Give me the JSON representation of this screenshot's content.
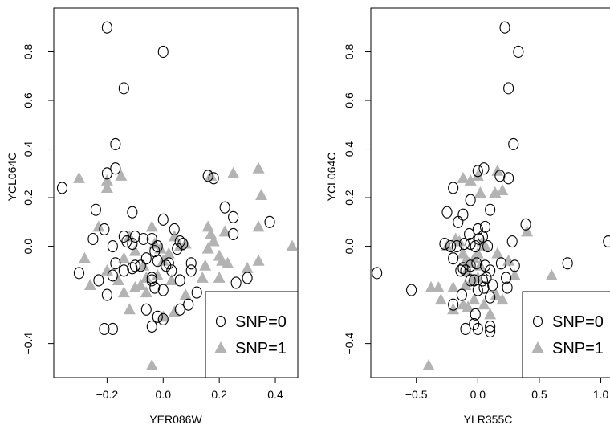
{
  "chart_data": [
    {
      "type": "scatter",
      "xlabel": "YER086W",
      "ylabel": "YCL064C",
      "xlim": [
        -0.39,
        0.48
      ],
      "ylim": [
        -0.54,
        0.98
      ],
      "xticks": [
        -0.2,
        0.0,
        0.2,
        0.4
      ],
      "xtick_labels": [
        "−0.2",
        "0.0",
        "0.2",
        "0.4"
      ],
      "yticks": [
        -0.4,
        0.0,
        0.2,
        0.4,
        0.6,
        0.8
      ],
      "ytick_labels": [
        "−0.4",
        "0.0",
        "0.2",
        "0.4",
        "0.6",
        "0.8"
      ],
      "legend": {
        "position": "bottom-right",
        "entries": [
          "SNP=0",
          "SNP=1"
        ]
      },
      "series": [
        {
          "name": "SNP=0",
          "marker": "open-circle",
          "color": "#000000",
          "points": [
            [
              -0.2,
              0.9
            ],
            [
              0.0,
              0.8
            ],
            [
              -0.14,
              0.65
            ],
            [
              -0.17,
              0.42
            ],
            [
              -0.17,
              0.32
            ],
            [
              -0.2,
              0.3
            ],
            [
              -0.36,
              0.24
            ],
            [
              -0.24,
              0.15
            ],
            [
              -0.11,
              0.14
            ],
            [
              -0.21,
              0.07
            ],
            [
              -0.25,
              0.03
            ],
            [
              -0.18,
              0.0
            ],
            [
              -0.13,
              0.02
            ],
            [
              -0.11,
              0.01
            ],
            [
              -0.14,
              0.04
            ],
            [
              -0.1,
              0.04
            ],
            [
              -0.07,
              0.03
            ],
            [
              -0.04,
              0.03
            ],
            [
              0.0,
              0.11
            ],
            [
              0.04,
              0.07
            ],
            [
              0.06,
              0.02
            ],
            [
              0.07,
              0.01
            ],
            [
              0.05,
              -0.01
            ],
            [
              -0.02,
              0.0
            ],
            [
              -0.03,
              -0.02
            ],
            [
              -0.17,
              -0.07
            ],
            [
              -0.14,
              -0.1
            ],
            [
              -0.11,
              -0.09
            ],
            [
              -0.1,
              -0.08
            ],
            [
              -0.06,
              -0.05
            ],
            [
              -0.02,
              -0.06
            ],
            [
              0.02,
              -0.07
            ],
            [
              0.01,
              -0.08
            ],
            [
              0.03,
              -0.1
            ],
            [
              -0.04,
              -0.13
            ],
            [
              -0.08,
              -0.08
            ],
            [
              -0.18,
              -0.12
            ],
            [
              -0.23,
              -0.14
            ],
            [
              -0.3,
              -0.11
            ],
            [
              -0.2,
              -0.2
            ],
            [
              -0.04,
              -0.14
            ],
            [
              -0.03,
              -0.17
            ],
            [
              0.0,
              -0.18
            ],
            [
              0.06,
              -0.14
            ],
            [
              0.1,
              -0.07
            ],
            [
              0.1,
              -0.1
            ],
            [
              0.12,
              -0.19
            ],
            [
              0.09,
              -0.24
            ],
            [
              0.06,
              -0.26
            ],
            [
              -0.06,
              -0.26
            ],
            [
              -0.02,
              -0.29
            ],
            [
              0.0,
              -0.3
            ],
            [
              -0.04,
              -0.33
            ],
            [
              -0.21,
              -0.34
            ],
            [
              -0.18,
              -0.34
            ],
            [
              0.16,
              0.29
            ],
            [
              0.18,
              0.28
            ],
            [
              0.22,
              0.16
            ],
            [
              0.25,
              0.12
            ],
            [
              0.25,
              0.05
            ],
            [
              0.38,
              0.1
            ],
            [
              0.26,
              -0.15
            ],
            [
              0.3,
              -0.13
            ],
            [
              0.3,
              -0.35
            ]
          ]
        },
        {
          "name": "SNP=1",
          "marker": "filled-triangle",
          "color": "#b3b3b3",
          "points": [
            [
              -0.3,
              0.28
            ],
            [
              -0.2,
              0.27
            ],
            [
              -0.15,
              0.29
            ],
            [
              -0.2,
              0.24
            ],
            [
              -0.23,
              0.08
            ],
            [
              -0.28,
              -0.05
            ],
            [
              -0.26,
              -0.16
            ],
            [
              -0.2,
              -0.1
            ],
            [
              -0.16,
              -0.14
            ],
            [
              -0.14,
              -0.05
            ],
            [
              -0.12,
              0.04
            ],
            [
              -0.1,
              -0.02
            ],
            [
              -0.07,
              -0.08
            ],
            [
              -0.06,
              -0.13
            ],
            [
              -0.02,
              -0.12
            ],
            [
              0.0,
              -0.06
            ],
            [
              0.02,
              -0.03
            ],
            [
              0.03,
              -0.14
            ],
            [
              -0.04,
              0.08
            ],
            [
              -0.03,
              0.01
            ],
            [
              -0.01,
              -0.01
            ],
            [
              0.04,
              0.04
            ],
            [
              0.06,
              0.0
            ],
            [
              0.08,
              0.01
            ],
            [
              -0.1,
              -0.17
            ],
            [
              -0.14,
              -0.19
            ],
            [
              -0.08,
              -0.16
            ],
            [
              -0.06,
              -0.19
            ],
            [
              -0.12,
              -0.26
            ],
            [
              0.08,
              -0.2
            ],
            [
              0.04,
              -0.27
            ],
            [
              0.0,
              -0.29
            ],
            [
              -0.04,
              -0.49
            ],
            [
              0.16,
              0.08
            ],
            [
              0.17,
              0.05
            ],
            [
              0.16,
              -0.01
            ],
            [
              0.18,
              0.02
            ],
            [
              0.2,
              -0.04
            ],
            [
              0.21,
              -0.06
            ],
            [
              0.22,
              0.06
            ],
            [
              0.23,
              -0.07
            ],
            [
              0.17,
              0.29
            ],
            [
              0.25,
              0.3
            ],
            [
              0.34,
              0.32
            ],
            [
              0.35,
              0.21
            ],
            [
              0.34,
              0.08
            ],
            [
              0.34,
              -0.06
            ],
            [
              0.3,
              -0.09
            ],
            [
              0.2,
              -0.13
            ],
            [
              0.2,
              -0.26
            ],
            [
              0.15,
              -0.08
            ],
            [
              0.14,
              -0.13
            ],
            [
              0.46,
              0.0
            ]
          ]
        }
      ]
    },
    {
      "type": "scatter",
      "xlabel": "YLR355C",
      "ylabel": "YCL064C",
      "xlim": [
        -0.87,
        1.14
      ],
      "ylim": [
        -0.54,
        0.98
      ],
      "xticks": [
        -0.5,
        0.0,
        0.5,
        1.0
      ],
      "xtick_labels": [
        "−0.5",
        "0.0",
        "0.5",
        "1.0"
      ],
      "yticks": [
        -0.4,
        0.0,
        0.2,
        0.4,
        0.6,
        0.8
      ],
      "ytick_labels": [
        "−0.4",
        "0.0",
        "0.2",
        "0.4",
        "0.6",
        "0.8"
      ],
      "legend": {
        "position": "bottom-right",
        "entries": [
          "SNP=0",
          "SNP=1"
        ]
      },
      "series": [
        {
          "name": "SNP=0",
          "marker": "open-circle",
          "color": "#000000",
          "points": [
            [
              0.22,
              0.9
            ],
            [
              0.33,
              0.8
            ],
            [
              0.25,
              0.65
            ],
            [
              0.29,
              0.42
            ],
            [
              0.05,
              0.32
            ],
            [
              0.0,
              0.31
            ],
            [
              0.18,
              0.29
            ],
            [
              0.25,
              0.28
            ],
            [
              -0.2,
              0.24
            ],
            [
              -0.06,
              0.19
            ],
            [
              -0.25,
              0.14
            ],
            [
              -0.12,
              0.13
            ],
            [
              0.1,
              0.15
            ],
            [
              -0.16,
              0.1
            ],
            [
              0.06,
              0.08
            ],
            [
              0.0,
              0.07
            ],
            [
              0.04,
              0.04
            ],
            [
              -0.07,
              0.05
            ],
            [
              0.01,
              0.03
            ],
            [
              -0.27,
              0.01
            ],
            [
              -0.22,
              0.0
            ],
            [
              -0.17,
              0.0
            ],
            [
              -0.11,
              0.01
            ],
            [
              -0.06,
              0.01
            ],
            [
              -0.02,
              0.0
            ],
            [
              0.08,
              0.0
            ],
            [
              0.39,
              0.09
            ],
            [
              0.28,
              0.02
            ],
            [
              1.06,
              0.02
            ],
            [
              -0.2,
              -0.05
            ],
            [
              -0.12,
              -0.09
            ],
            [
              -0.14,
              -0.1
            ],
            [
              -0.1,
              -0.1
            ],
            [
              -0.06,
              -0.08
            ],
            [
              -0.01,
              -0.07
            ],
            [
              0.06,
              -0.08
            ],
            [
              0.1,
              -0.1
            ],
            [
              0.19,
              -0.07
            ],
            [
              0.3,
              -0.08
            ],
            [
              0.23,
              -0.13
            ],
            [
              0.07,
              -0.13
            ],
            [
              0.04,
              -0.14
            ],
            [
              0.12,
              -0.16
            ],
            [
              0.05,
              -0.17
            ],
            [
              -0.03,
              -0.14
            ],
            [
              0.0,
              -0.18
            ],
            [
              0.24,
              -0.17
            ],
            [
              -0.06,
              -0.14
            ],
            [
              0.73,
              -0.07
            ],
            [
              -0.82,
              -0.11
            ],
            [
              -0.54,
              -0.18
            ],
            [
              -0.13,
              -0.2
            ],
            [
              0.1,
              -0.21
            ],
            [
              -0.2,
              -0.24
            ],
            [
              -0.02,
              -0.28
            ],
            [
              -0.03,
              -0.32
            ],
            [
              -0.1,
              -0.34
            ],
            [
              0.0,
              -0.34
            ],
            [
              0.1,
              -0.33
            ],
            [
              0.1,
              -0.35
            ]
          ]
        },
        {
          "name": "SNP=1",
          "marker": "filled-triangle",
          "color": "#b3b3b3",
          "points": [
            [
              -0.12,
              0.28
            ],
            [
              -0.06,
              0.27
            ],
            [
              0.0,
              0.29
            ],
            [
              0.16,
              0.31
            ],
            [
              0.02,
              0.22
            ],
            [
              0.14,
              0.22
            ],
            [
              0.2,
              0.23
            ],
            [
              -0.18,
              0.03
            ],
            [
              -0.15,
              0.02
            ],
            [
              -0.12,
              -0.03
            ],
            [
              -0.1,
              -0.06
            ],
            [
              -0.09,
              -0.1
            ],
            [
              -0.07,
              -0.07
            ],
            [
              -0.03,
              -0.05
            ],
            [
              0.0,
              -0.03
            ],
            [
              0.04,
              0.02
            ],
            [
              0.06,
              0.0
            ],
            [
              0.02,
              -0.08
            ],
            [
              0.0,
              -0.13
            ],
            [
              -0.05,
              -0.14
            ],
            [
              -0.1,
              -0.16
            ],
            [
              -0.2,
              -0.17
            ],
            [
              -0.32,
              -0.17
            ],
            [
              -0.38,
              -0.17
            ],
            [
              -0.3,
              -0.22
            ],
            [
              -0.2,
              -0.26
            ],
            [
              -0.12,
              -0.24
            ],
            [
              -0.08,
              -0.25
            ],
            [
              -0.03,
              -0.22
            ],
            [
              0.05,
              -0.24
            ],
            [
              0.15,
              -0.2
            ],
            [
              0.2,
              -0.22
            ],
            [
              0.1,
              -0.28
            ],
            [
              0.25,
              -0.06
            ],
            [
              0.3,
              -0.12
            ],
            [
              0.4,
              0.06
            ],
            [
              0.6,
              -0.12
            ],
            [
              -0.4,
              -0.49
            ],
            [
              -0.25,
              0.0
            ],
            [
              0.16,
              -0.03
            ]
          ]
        }
      ]
    }
  ]
}
